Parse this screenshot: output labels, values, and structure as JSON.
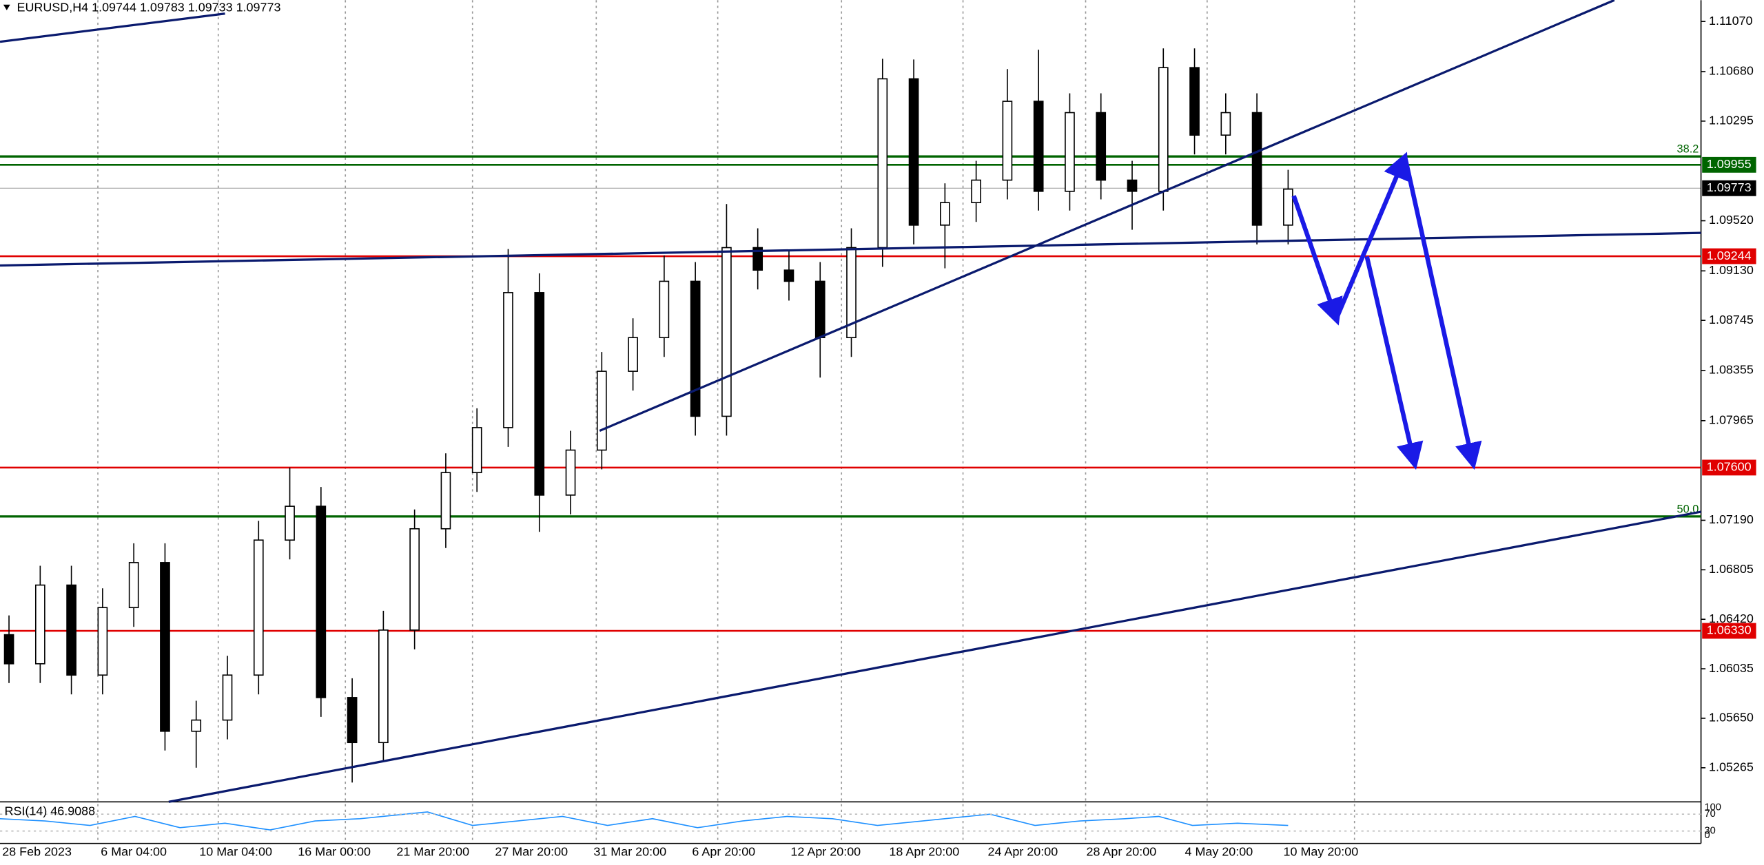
{
  "chart_data": {
    "type": "candlestick",
    "title": "EURUSD,H4  1.09744 1.09783 1.09733 1.09773",
    "rsi_label": "RSI(14) 46.9088",
    "rsi_ticks": [
      "100",
      "70",
      "30",
      "0"
    ],
    "open": [
      1.063,
      1.06074,
      1.06686,
      1.05986,
      1.06511,
      1.06861,
      1.05549,
      1.05636,
      1.05986,
      1.07036,
      1.07299,
      1.05811,
      1.05461,
      1.06336,
      1.07124,
      1.07561,
      1.07911,
      1.08961,
      1.07386,
      1.07736,
      1.08349,
      1.08611,
      1.09049,
      1.07999,
      1.09311,
      1.09136,
      1.09049,
      1.08611,
      1.09311,
      1.10624,
      1.09486,
      1.09661,
      1.09836,
      1.10449,
      1.09749,
      1.10361,
      1.09836,
      1.09749,
      1.10711,
      1.10186,
      1.10361,
      1.09486
    ],
    "high": [
      1.0645,
      1.06836,
      1.06836,
      1.06661,
      1.07011,
      1.07011,
      1.05786,
      1.06136,
      1.07186,
      1.076,
      1.07449,
      1.05961,
      1.06486,
      1.07274,
      1.07711,
      1.08061,
      1.093,
      1.09111,
      1.07886,
      1.08499,
      1.08761,
      1.0925,
      1.09199,
      1.0965,
      1.09461,
      1.09286,
      1.09199,
      1.09461,
      1.1078,
      1.10774,
      1.09811,
      1.09986,
      1.107,
      1.1085,
      1.10511,
      1.10511,
      1.09986,
      1.10861,
      1.10861,
      1.10511,
      1.10511,
      1.09916
    ],
    "low": [
      1.05924,
      1.05924,
      1.05836,
      1.05836,
      1.06361,
      1.05399,
      1.05265,
      1.05486,
      1.05836,
      1.06886,
      1.05661,
      1.0515,
      1.05311,
      1.06186,
      1.06974,
      1.07411,
      1.07761,
      1.071,
      1.07236,
      1.07586,
      1.08199,
      1.08461,
      1.07849,
      1.07849,
      1.08986,
      1.08899,
      1.083,
      1.08461,
      1.09161,
      1.09336,
      1.0915,
      1.09511,
      1.09686,
      1.09599,
      1.09599,
      1.09686,
      1.0945,
      1.09599,
      1.10036,
      1.10036,
      1.09336,
      1.09336
    ],
    "close": [
      1.06074,
      1.06686,
      1.05986,
      1.06511,
      1.06861,
      1.05549,
      1.05636,
      1.05986,
      1.07036,
      1.07299,
      1.05811,
      1.05461,
      1.06336,
      1.07124,
      1.07561,
      1.07911,
      1.08961,
      1.07386,
      1.07736,
      1.08349,
      1.08611,
      1.09049,
      1.07999,
      1.09311,
      1.09136,
      1.09049,
      1.08611,
      1.09311,
      1.10624,
      1.09486,
      1.09661,
      1.09836,
      1.10449,
      1.09749,
      1.10361,
      1.09836,
      1.09749,
      1.10711,
      1.10186,
      1.10361,
      1.09486,
      1.09766
    ],
    "xlabels": [
      "28 Feb 2023",
      "6 Mar 04:00",
      "10 Mar 04:00",
      "16 Mar 00:00",
      "21 Mar 20:00",
      "27 Mar 20:00",
      "31 Mar 20:00",
      "6 Apr 20:00",
      "12 Apr 20:00",
      "18 Apr 20:00",
      "24 Apr 20:00",
      "28 Apr 20:00",
      "4 May 20:00",
      "10 May 20:00"
    ],
    "ylim": [
      1.05,
      1.11236
    ],
    "yticks": [
      {
        "value": 1.1107,
        "label": "1.11070"
      },
      {
        "value": 1.1068,
        "label": "1.10680"
      },
      {
        "value": 1.10295,
        "label": "1.10295"
      },
      {
        "value": 1.0952,
        "label": "1.09520"
      },
      {
        "value": 1.0913,
        "label": "1.09130"
      },
      {
        "value": 1.08745,
        "label": "1.08745"
      },
      {
        "value": 1.08355,
        "label": "1.08355"
      },
      {
        "value": 1.07965,
        "label": "1.07965"
      },
      {
        "value": 1.0719,
        "label": "1.07190"
      },
      {
        "value": 1.06805,
        "label": "1.06805"
      },
      {
        "value": 1.0642,
        "label": "1.06420"
      },
      {
        "value": 1.06035,
        "label": "1.06035"
      },
      {
        "value": 1.0565,
        "label": "1.05650"
      },
      {
        "value": 1.05265,
        "label": "1.05265"
      }
    ],
    "levels": [
      {
        "value": 1.09955,
        "label": "1.09955",
        "color": "#006400"
      },
      {
        "value": 1.09773,
        "label": "1.09773",
        "color": "#000000"
      },
      {
        "value": 1.09244,
        "label": "1.09244",
        "color": "#e00000"
      },
      {
        "value": 1.076,
        "label": "1.07600",
        "color": "#e00000"
      },
      {
        "value": 1.0633,
        "label": "1.06330",
        "color": "#e00000"
      }
    ],
    "fib": [
      {
        "value": 1.1002,
        "label": "38.2"
      },
      {
        "value": 1.0722,
        "label": "50.0"
      }
    ]
  }
}
